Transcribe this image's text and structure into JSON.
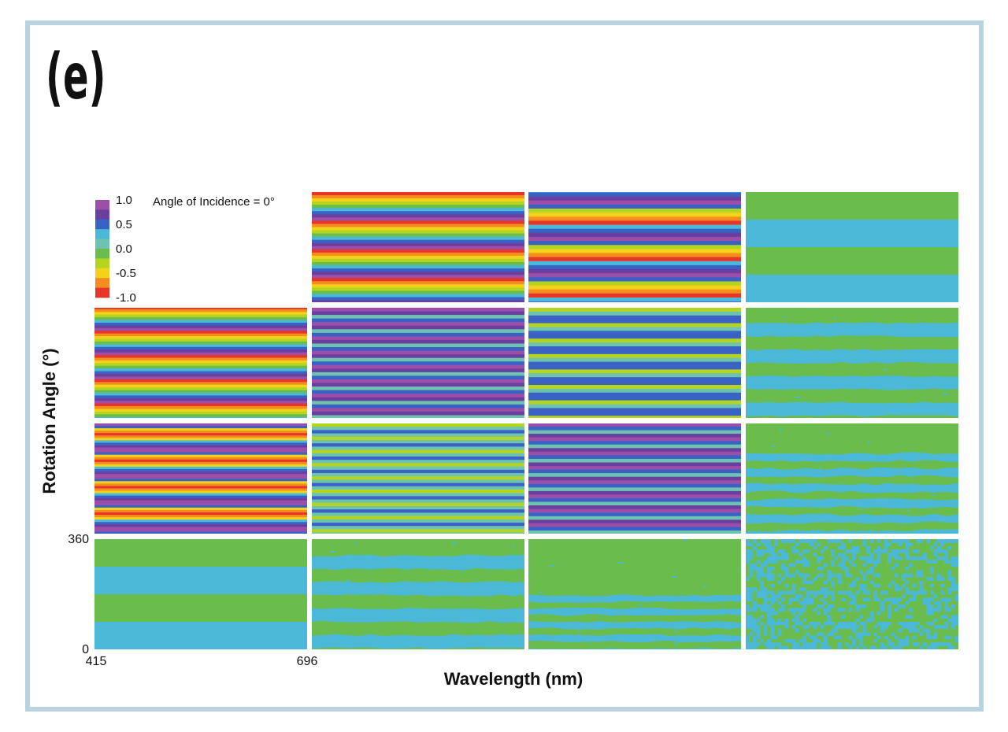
{
  "panel_label": "(e)",
  "chart_data": {
    "type": "heatmap",
    "title": "Angle of Incidence = 0°",
    "xlabel": "Wavelength (nm)",
    "ylabel": "Rotation Angle (°)",
    "x_range": [
      415,
      696
    ],
    "y_range": [
      0,
      360
    ],
    "x_ticks": [
      "415",
      "696"
    ],
    "y_ticks": [
      "0",
      "360"
    ],
    "colorbar": {
      "range": [
        -1.0,
        1.0
      ],
      "tick_labels": [
        "1.0",
        "0.5",
        "0.0",
        "-0.5",
        "-1.0"
      ],
      "levels": [
        {
          "max": 1.0,
          "color": "#9b4fa8"
        },
        {
          "max": 0.75,
          "color": "#6a3fa0"
        },
        {
          "max": 0.5,
          "color": "#3a62c4"
        },
        {
          "max": 0.25,
          "color": "#4cb8d8"
        },
        {
          "max": 0.08,
          "color": "#6dc3b0"
        },
        {
          "max": -0.08,
          "color": "#6abd4c"
        },
        {
          "max": -0.25,
          "color": "#b5d420"
        },
        {
          "max": -0.5,
          "color": "#f2d21a"
        },
        {
          "max": -0.75,
          "color": "#f28d1e"
        },
        {
          "max": -0.9,
          "color": "#e8352a"
        }
      ]
    },
    "grid": {
      "rows": 4,
      "cols": 4,
      "empty_cells": [
        [
          0,
          0
        ]
      ]
    },
    "panels": [
      {
        "row": 0,
        "col": 1,
        "pattern": "rainbow",
        "band_order": [
          "red",
          "orange",
          "yellow",
          "lime",
          "green",
          "cyan",
          "blue",
          "violet",
          "purple"
        ],
        "period_fraction": 0.26,
        "phase": 0.0
      },
      {
        "row": 0,
        "col": 2,
        "pattern": "rainbow",
        "band_order": [
          "cyan",
          "blue",
          "violet",
          "purple",
          "blue",
          "lime",
          "yellow",
          "orange",
          "red"
        ],
        "period_fraction": 0.33,
        "phase": 0.1
      },
      {
        "row": 0,
        "col": 3,
        "pattern": "two-tone",
        "value_a": -0.1,
        "value_b": 0.1,
        "band_fraction": 0.25,
        "phase": 0.0,
        "noise": 0.0
      },
      {
        "row": 1,
        "col": 0,
        "pattern": "rainbow",
        "band_order": [
          "red",
          "orange",
          "yellow",
          "lime",
          "green",
          "cyan",
          "blue",
          "violet",
          "purple"
        ],
        "period_fraction": 0.22,
        "phase": 0.05
      },
      {
        "row": 1,
        "col": 1,
        "pattern": "stripes",
        "levels": [
          0.9,
          0.6,
          0.05,
          0.5
        ],
        "period_fraction": 0.13,
        "phase": 0.0
      },
      {
        "row": 1,
        "col": 2,
        "pattern": "stripes",
        "levels": [
          -0.3,
          0.0,
          0.5,
          0.3
        ],
        "period_fraction": 0.14,
        "phase": 0.0
      },
      {
        "row": 1,
        "col": 3,
        "pattern": "two-tone",
        "value_a": -0.1,
        "value_b": 0.1,
        "band_fraction": 0.12,
        "phase": 0.02,
        "noise": 0.05
      },
      {
        "row": 2,
        "col": 0,
        "pattern": "rainbow",
        "band_order": [
          "purple",
          "blue",
          "yellow",
          "orange",
          "red",
          "orange",
          "yellow",
          "cyan",
          "blue",
          "violet",
          "purple"
        ],
        "period_fraction": 0.24,
        "phase": 0.0
      },
      {
        "row": 2,
        "col": 1,
        "pattern": "stripes",
        "levels": [
          -0.3,
          0.0,
          0.5,
          0.05
        ],
        "period_fraction": 0.12,
        "phase": 0.0
      },
      {
        "row": 2,
        "col": 2,
        "pattern": "stripes",
        "levels": [
          0.9,
          0.5,
          0.05,
          0.6
        ],
        "period_fraction": 0.13,
        "phase": 0.03
      },
      {
        "row": 2,
        "col": 3,
        "pattern": "two-tone",
        "value_a": -0.1,
        "value_b": 0.1,
        "band_fraction": 0.07,
        "phase": 0.2,
        "noise": 0.08
      },
      {
        "row": 3,
        "col": 0,
        "pattern": "two-tone",
        "value_a": -0.1,
        "value_b": 0.1,
        "band_fraction": 0.25,
        "phase": 0.0,
        "noise": 0.0
      },
      {
        "row": 3,
        "col": 1,
        "pattern": "two-tone",
        "value_a": -0.1,
        "value_b": 0.1,
        "band_fraction": 0.12,
        "phase": 0.03,
        "noise": 0.06
      },
      {
        "row": 3,
        "col": 2,
        "pattern": "two-tone",
        "value_a": -0.1,
        "value_b": 0.1,
        "band_fraction": 0.06,
        "phase": 0.45,
        "noise": 0.06
      },
      {
        "row": 3,
        "col": 3,
        "pattern": "noisy",
        "value_a": -0.1,
        "value_b": 0.1,
        "noise": 0.45
      }
    ]
  }
}
